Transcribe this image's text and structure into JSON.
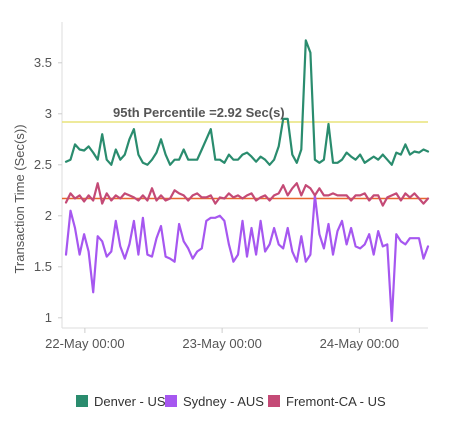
{
  "chart_data": {
    "type": "line",
    "title": "",
    "xlabel": "",
    "ylabel": "Transaction Time (Sec(s))",
    "ylim": [
      0.9,
      3.9
    ],
    "y_ticks": [
      "1",
      "1.5",
      "2",
      "2.5",
      "3",
      "3.5"
    ],
    "x_ticks": [
      "22-May 00:00",
      "23-May 00:00",
      "24-May 00:00"
    ],
    "grid": "off",
    "legend_placement": "bottom",
    "x_start_hours": -4,
    "x_end_hours": 60,
    "x_tick_hours": [
      0,
      24,
      48
    ],
    "reference_lines": [
      {
        "label": "95th Percentile =2.92 Sec(s)",
        "value": 2.92,
        "color": "#e8e47a"
      },
      {
        "label": "",
        "value": 2.17,
        "color": "#e8662e"
      }
    ],
    "series": [
      {
        "name": "Denver - US",
        "color": "#2a8c6e",
        "values": [
          2.53,
          2.55,
          2.7,
          2.65,
          2.64,
          2.68,
          2.62,
          2.55,
          2.8,
          2.55,
          2.5,
          2.65,
          2.55,
          2.6,
          2.75,
          2.85,
          2.6,
          2.52,
          2.5,
          2.55,
          2.62,
          2.75,
          2.6,
          2.5,
          2.55,
          2.55,
          2.65,
          2.55,
          2.55,
          2.55,
          2.65,
          2.75,
          2.85,
          2.55,
          2.55,
          2.52,
          2.6,
          2.55,
          2.55,
          2.6,
          2.62,
          2.58,
          2.53,
          2.58,
          2.55,
          2.5,
          2.55,
          2.68,
          2.95,
          2.95,
          2.6,
          2.52,
          2.65,
          3.72,
          3.6,
          2.55,
          2.52,
          2.55,
          2.9,
          2.52,
          2.52,
          2.55,
          2.62,
          2.58,
          2.55,
          2.6,
          2.52,
          2.55,
          2.58,
          2.55,
          2.6,
          2.55,
          2.5,
          2.62,
          2.6,
          2.7,
          2.6,
          2.63,
          2.62,
          2.65,
          2.63
        ]
      },
      {
        "name": "Sydney - AUS",
        "color": "#a657f0",
        "values": [
          1.62,
          2.05,
          1.88,
          1.62,
          1.82,
          1.65,
          1.25,
          1.8,
          1.75,
          1.6,
          1.65,
          1.95,
          1.7,
          1.58,
          1.72,
          1.95,
          1.62,
          1.98,
          1.62,
          1.6,
          1.78,
          1.9,
          1.6,
          1.58,
          1.55,
          1.92,
          1.75,
          1.68,
          1.58,
          1.65,
          1.68,
          1.95,
          1.98,
          1.98,
          2.0,
          1.95,
          1.72,
          1.55,
          1.62,
          1.95,
          1.6,
          1.88,
          1.62,
          1.95,
          1.65,
          1.72,
          1.88,
          1.72,
          1.68,
          1.88,
          1.65,
          1.55,
          1.8,
          1.55,
          1.62,
          2.2,
          1.82,
          1.68,
          1.92,
          1.62,
          1.85,
          1.95,
          1.72,
          1.88,
          1.7,
          1.68,
          1.72,
          1.82,
          1.62,
          1.85,
          1.7,
          1.72,
          0.97,
          1.82,
          1.75,
          1.72,
          1.78,
          1.78,
          1.78,
          1.58,
          1.7
        ]
      },
      {
        "name": "Fremont-CA - US",
        "color": "#c44a76",
        "values": [
          2.13,
          2.22,
          2.17,
          2.2,
          2.14,
          2.2,
          2.15,
          2.32,
          2.12,
          2.22,
          2.15,
          2.2,
          2.17,
          2.22,
          2.2,
          2.18,
          2.15,
          2.2,
          2.15,
          2.27,
          2.15,
          2.2,
          2.15,
          2.17,
          2.25,
          2.22,
          2.2,
          2.15,
          2.2,
          2.22,
          2.18,
          2.18,
          2.2,
          2.12,
          2.18,
          2.17,
          2.22,
          2.18,
          2.2,
          2.17,
          2.2,
          2.22,
          2.15,
          2.18,
          2.2,
          2.15,
          2.2,
          2.22,
          2.3,
          2.2,
          2.27,
          2.32,
          2.2,
          2.3,
          2.27,
          2.2,
          2.27,
          2.2,
          2.2,
          2.22,
          2.2,
          2.2,
          2.2,
          2.15,
          2.2,
          2.2,
          2.22,
          2.15,
          2.2,
          2.2,
          2.1,
          2.18,
          2.2,
          2.22,
          2.15,
          2.22,
          2.18,
          2.22,
          2.17,
          2.12,
          2.17
        ]
      }
    ]
  }
}
